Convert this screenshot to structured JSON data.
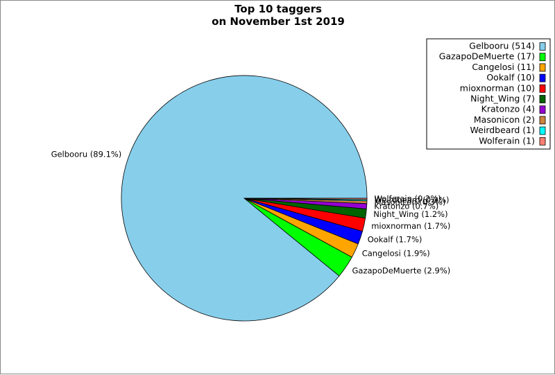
{
  "chart_data": {
    "type": "pie",
    "title_lines": [
      "Top 10 taggers",
      "on November 1st 2019"
    ],
    "slices": [
      {
        "name": "Gelbooru",
        "value": 514,
        "color": "#87ceeb",
        "legend_label": "Gelbooru (514)",
        "slice_label": "Gelbooru (89.1%)"
      },
      {
        "name": "GazapoDeMuerte",
        "value": 17,
        "color": "#00ff00",
        "legend_label": "GazapoDeMuerte (17)",
        "slice_label": "GazapoDeMuerte (2.9%)"
      },
      {
        "name": "Cangelosi",
        "value": 11,
        "color": "#ffa500",
        "legend_label": "Cangelosi (11)",
        "slice_label": "Cangelosi (1.9%)"
      },
      {
        "name": "Ookalf",
        "value": 10,
        "color": "#0000ff",
        "legend_label": "Ookalf (10)",
        "slice_label": "Ookalf (1.7%)"
      },
      {
        "name": "mioxnorman",
        "value": 10,
        "color": "#ff0000",
        "legend_label": "mioxnorman (10)",
        "slice_label": "mioxnorman (1.7%)"
      },
      {
        "name": "Night_Wing",
        "value": 7,
        "color": "#006400",
        "legend_label": "Night_Wing (7)",
        "slice_label": "Night_Wing (1.2%)"
      },
      {
        "name": "Kratonzo",
        "value": 4,
        "color": "#9400d3",
        "legend_label": "Kratonzo (4)",
        "slice_label": "Kratonzo (0.7%)"
      },
      {
        "name": "Masonicon",
        "value": 2,
        "color": "#cd853f",
        "legend_label": "Masonicon (2)",
        "slice_label": "Masonicon (0.3%)"
      },
      {
        "name": "Weirdbeard",
        "value": 1,
        "color": "#00ffff",
        "legend_label": "Weirdbeard (1)",
        "slice_label": "Weirdbeard (0.2%)"
      },
      {
        "name": "Wolferain",
        "value": 1,
        "color": "#fa8072",
        "legend_label": "Wolferain (1)",
        "slice_label": "Wolferain (0.2%)"
      }
    ],
    "start_angle": "right (3 o'clock)",
    "direction": "counterclockwise",
    "legend_position": "top-right"
  }
}
